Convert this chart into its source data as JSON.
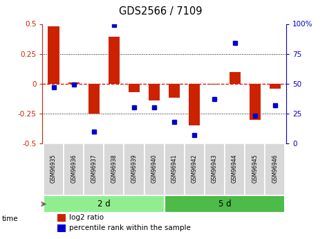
{
  "title": "GDS2566 / 7109",
  "samples": [
    "GSM96935",
    "GSM96936",
    "GSM96937",
    "GSM96938",
    "GSM96939",
    "GSM96940",
    "GSM96941",
    "GSM96942",
    "GSM96943",
    "GSM96944",
    "GSM96945",
    "GSM96946"
  ],
  "log2_ratio": [
    0.48,
    0.01,
    -0.25,
    0.39,
    -0.07,
    -0.14,
    -0.12,
    -0.35,
    -0.01,
    0.1,
    -0.3,
    -0.04
  ],
  "percentile_rank": [
    47,
    49,
    10,
    99,
    30,
    30,
    18,
    7,
    37,
    84,
    23,
    32
  ],
  "groups": [
    {
      "label": "2 d",
      "start": 0,
      "end": 6,
      "color": "#90EE90"
    },
    {
      "label": "5 d",
      "start": 6,
      "end": 12,
      "color": "#4CBB47"
    }
  ],
  "ylim": [
    -0.5,
    0.5
  ],
  "yticks_left": [
    -0.5,
    -0.25,
    0,
    0.25,
    0.5
  ],
  "ytick_labels_left": [
    "-0.5",
    "-0.25",
    "0",
    "0.25",
    "0.5"
  ],
  "y2ticks": [
    0,
    25,
    50,
    75,
    100
  ],
  "y2labels": [
    "0",
    "25",
    "50",
    "75",
    "100%"
  ],
  "bar_color": "#cc2200",
  "dot_color": "#0000cc",
  "zero_line_color": "#dd0000",
  "grid_color": "#000000",
  "bg_color": "#ffffff",
  "sample_box_color": "#d8d8d8",
  "time_label": "time",
  "legend_bar": "log2 ratio",
  "legend_dot": "percentile rank within the sample",
  "tick_color_left": "#cc2200",
  "tick_color_right": "#0000cc",
  "group_border_color": "#ffffff",
  "bar_width": 0.55
}
